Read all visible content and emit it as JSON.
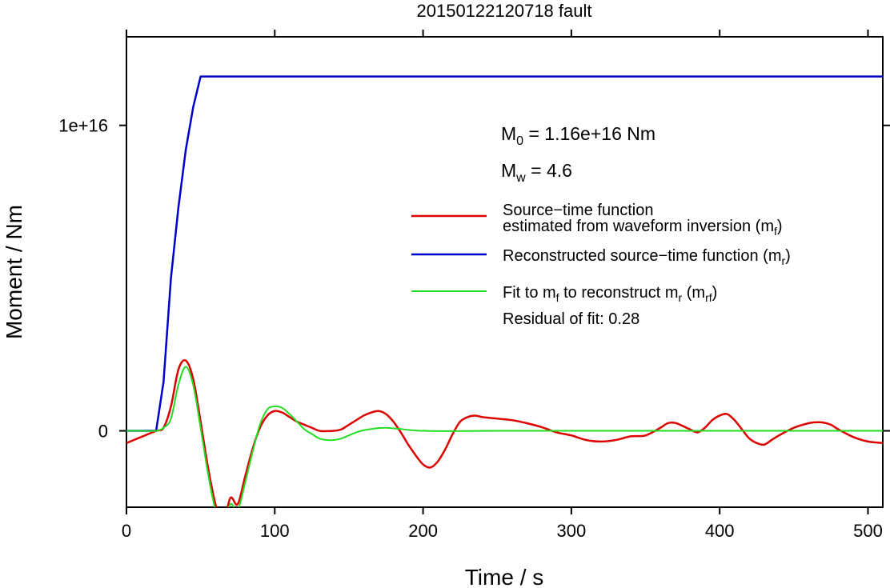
{
  "chart_data": {
    "type": "line",
    "title": "20150122120718 fault",
    "xlabel": "Time / s",
    "ylabel": "Moment / Nm",
    "xlim": [
      0,
      510
    ],
    "ylim": [
      -2500000000000000.0,
      1.29e+16
    ],
    "x_ticks": [
      0,
      100,
      200,
      300,
      400,
      500
    ],
    "x_tick_labels": [
      "0",
      "100",
      "200",
      "300",
      "400",
      "500"
    ],
    "y_ticks": [
      0,
      1e+16
    ],
    "y_tick_labels": [
      "0",
      "1e+16"
    ],
    "grid": false,
    "legend_placement": "right",
    "annotations": {
      "m0": {
        "base": "M",
        "sub": "0",
        "text": " = 1.16e+16 Nm"
      },
      "mw": {
        "base": "M",
        "sub": "w",
        "text": " = 4.6"
      },
      "residual": "Residual of fit: 0.28"
    },
    "legend": [
      {
        "color": "#dd0000",
        "width": 2.5,
        "parts": [
          {
            "t": "Source−time function"
          }
        ],
        "parts2": [
          {
            "t": "estimated from waveform inversion (m"
          },
          {
            "t": "f",
            "sub": true
          },
          {
            "t": ")"
          }
        ]
      },
      {
        "color": "#0000cc",
        "width": 2.5,
        "parts": [
          {
            "t": "Reconstructed source−time function (m"
          },
          {
            "t": "r",
            "sub": true
          },
          {
            "t": ")"
          }
        ]
      },
      {
        "color": "#22dd22",
        "width": 2,
        "parts": [
          {
            "t": "Fit to m"
          },
          {
            "t": "f",
            "sub": true
          },
          {
            "t": " to reconstruct m"
          },
          {
            "t": "r",
            "sub": true
          },
          {
            "t": " (m"
          },
          {
            "t": "rf",
            "sub": true
          },
          {
            "t": ")"
          }
        ]
      }
    ],
    "series": [
      {
        "color": "#0000cc",
        "width": 2.5,
        "x": [
          0,
          20,
          25,
          30,
          35,
          40,
          45,
          50,
          510
        ],
        "y": [
          0,
          0,
          1600000000000000.0,
          5000000000000000.0,
          7300000000000000.0,
          9200000000000000.0,
          1.06e+16,
          1.16e+16,
          1.16e+16
        ]
      },
      {
        "color": "#dd0000",
        "width": 2.5,
        "x": [
          0,
          10,
          20,
          25,
          30,
          35,
          40,
          45,
          50,
          55,
          60,
          65,
          70,
          75,
          80,
          85,
          90,
          95,
          100,
          105,
          110,
          115,
          120,
          125,
          130,
          135,
          140,
          145,
          150,
          155,
          160,
          165,
          170,
          175,
          180,
          185,
          190,
          195,
          200,
          205,
          210,
          215,
          220,
          225,
          230,
          235,
          240,
          250,
          260,
          270,
          280,
          290,
          300,
          310,
          320,
          330,
          340,
          350,
          360,
          365,
          370,
          375,
          380,
          385,
          390,
          395,
          400,
          405,
          410,
          415,
          420,
          425,
          430,
          435,
          440,
          450,
          460,
          465,
          470,
          475,
          480,
          490,
          500,
          510
        ],
        "y": [
          -400000000000000.0,
          -200000000000000.0,
          0,
          100000000000000.0,
          800000000000000.0,
          2000000000000000.0,
          2300000000000000.0,
          1700000000000000.0,
          300000000000000.0,
          -1200000000000000.0,
          -2400000000000000.0,
          -3100000000000000.0,
          -2200000000000000.0,
          -2400000000000000.0,
          -1500000000000000.0,
          -600000000000000.0,
          100000000000000.0,
          500000000000000.0,
          650000000000000.0,
          600000000000000.0,
          450000000000000.0,
          300000000000000.0,
          200000000000000.0,
          100000000000000.0,
          0,
          -10000000000000.0,
          0,
          50000000000000.0,
          200000000000000.0,
          350000000000000.0,
          500000000000000.0,
          600000000000000.0,
          650000000000000.0,
          550000000000000.0,
          300000000000000.0,
          -50000000000000.0,
          -450000000000000.0,
          -800000000000000.0,
          -1100000000000000.0,
          -1200000000000000.0,
          -1000000000000000.0,
          -600000000000000.0,
          -100000000000000.0,
          300000000000000.0,
          450000000000000.0,
          500000000000000.0,
          450000000000000.0,
          400000000000000.0,
          350000000000000.0,
          250000000000000.0,
          120000000000000.0,
          -50000000000000.0,
          -150000000000000.0,
          -300000000000000.0,
          -350000000000000.0,
          -300000000000000.0,
          -180000000000000.0,
          -150000000000000.0,
          100000000000000.0,
          250000000000000.0,
          260000000000000.0,
          160000000000000.0,
          50000000000000.0,
          -50000000000000.0,
          100000000000000.0,
          350000000000000.0,
          500000000000000.0,
          550000000000000.0,
          350000000000000.0,
          50000000000000.0,
          -250000000000000.0,
          -400000000000000.0,
          -450000000000000.0,
          -300000000000000.0,
          -150000000000000.0,
          100000000000000.0,
          250000000000000.0,
          280000000000000.0,
          270000000000000.0,
          200000000000000.0,
          50000000000000.0,
          -200000000000000.0,
          -350000000000000.0,
          -400000000000000.0
        ]
      },
      {
        "color": "#22dd22",
        "width": 2,
        "x": [
          0,
          10,
          20,
          25,
          30,
          35,
          40,
          45,
          50,
          55,
          60,
          65,
          70,
          75,
          80,
          85,
          90,
          95,
          100,
          105,
          110,
          115,
          120,
          125,
          130,
          135,
          140,
          145,
          150,
          155,
          160,
          165,
          170,
          175,
          180,
          185,
          190,
          200,
          220,
          250,
          300,
          350,
          400,
          450,
          510
        ],
        "y": [
          0,
          0,
          0,
          100000000000000.0,
          400000000000000.0,
          1500000000000000.0,
          2100000000000000.0,
          1500000000000000.0,
          100000000000000.0,
          -1400000000000000.0,
          -2600000000000000.0,
          -3200000000000000.0,
          -2400000000000000.0,
          -2600000000000000.0,
          -1700000000000000.0,
          -700000000000000.0,
          200000000000000.0,
          700000000000000.0,
          800000000000000.0,
          750000000000000.0,
          550000000000000.0,
          300000000000000.0,
          50000000000000.0,
          -100000000000000.0,
          -250000000000000.0,
          -300000000000000.0,
          -300000000000000.0,
          -250000000000000.0,
          -150000000000000.0,
          -50000000000000.0,
          20000000000000.0,
          60000000000000.0,
          90000000000000.0,
          100000000000000.0,
          80000000000000.0,
          60000000000000.0,
          30000000000000.0,
          0,
          -10000000000000.0,
          0,
          0,
          0,
          0,
          0,
          0
        ]
      }
    ]
  }
}
